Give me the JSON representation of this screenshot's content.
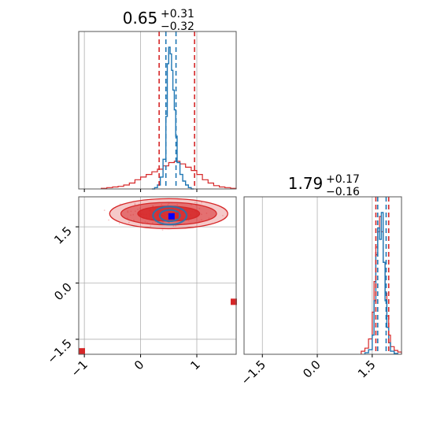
{
  "chart_data": {
    "type": "corner",
    "colors": {
      "primary": "#d62728",
      "secondary": "#1f77b4",
      "marker": "#0000ff"
    },
    "panels": [
      {
        "id": "hist-x",
        "type": "histogram",
        "title": {
          "value": "0.65",
          "plus": "+0.31",
          "minus": "−0.32"
        },
        "xlim": [
          -1.1,
          1.7
        ],
        "xticks": [
          -1,
          0,
          1
        ],
        "grid": true,
        "blue_hist": {
          "bin_edges": [
            0.2,
            0.25,
            0.3,
            0.35,
            0.4,
            0.45,
            0.475,
            0.5,
            0.525,
            0.55,
            0.575,
            0.6,
            0.625,
            0.65,
            0.7,
            0.75,
            0.8,
            0.85,
            0.9,
            0.95
          ],
          "counts": [
            0,
            2,
            6,
            18,
            45,
            110,
            190,
            215,
            205,
            180,
            150,
            120,
            80,
            40,
            22,
            12,
            6,
            2,
            0
          ]
        },
        "red_hist": {
          "bin_edges": [
            -0.7,
            -0.6,
            -0.5,
            -0.4,
            -0.3,
            -0.2,
            -0.1,
            0.0,
            0.1,
            0.2,
            0.3,
            0.4,
            0.5,
            0.6,
            0.7,
            0.8,
            0.9,
            1.0,
            1.1,
            1.2,
            1.3,
            1.4,
            1.5,
            1.6,
            1.7
          ],
          "counts": [
            1,
            2,
            3,
            4,
            6,
            9,
            14,
            18,
            22,
            26,
            30,
            35,
            40,
            42,
            38,
            33,
            28,
            22,
            14,
            9,
            5,
            3,
            2,
            1
          ]
        },
        "red_lines": [
          0.33,
          0.96
        ],
        "blue_lines": [
          0.45,
          0.63
        ]
      },
      {
        "id": "hist-y",
        "type": "histogram",
        "title": {
          "value": "1.79",
          "plus": "+0.17",
          "minus": "−0.16"
        },
        "xlim": [
          -2.0,
          2.3
        ],
        "xticks": [
          -1.5,
          0.0,
          1.5
        ],
        "grid": true,
        "blue_hist": {
          "bin_edges": [
            1.3,
            1.4,
            1.5,
            1.55,
            1.6,
            1.65,
            1.7,
            1.75,
            1.8,
            1.85,
            1.9,
            1.95,
            2.0,
            2.1,
            2.2
          ],
          "counts": [
            2,
            6,
            25,
            70,
            130,
            165,
            150,
            185,
            120,
            70,
            35,
            15,
            4,
            1
          ]
        },
        "red_hist": {
          "bin_edges": [
            1.2,
            1.3,
            1.4,
            1.5,
            1.55,
            1.6,
            1.65,
            1.7,
            1.75,
            1.8,
            1.85,
            1.9,
            1.95,
            2.0,
            2.1,
            2.2,
            2.3
          ],
          "counts": [
            4,
            8,
            20,
            55,
            95,
            140,
            160,
            180,
            160,
            120,
            80,
            50,
            25,
            10,
            5,
            3
          ]
        },
        "red_lines": [
          1.6,
          1.95
        ],
        "blue_lines": [
          1.65,
          1.88
        ]
      },
      {
        "id": "scatter-2d",
        "type": "contour",
        "xlim": [
          -1.1,
          1.7
        ],
        "ylim": [
          -1.9,
          2.3
        ],
        "xticks": [
          -1,
          0,
          1
        ],
        "yticks": [
          -1.5,
          0.0,
          1.5
        ],
        "grid": true,
        "red_contours": [
          {
            "cx": 0.5,
            "cy": 1.85,
            "rx": 1.05,
            "ry": 0.4
          },
          {
            "cx": 0.5,
            "cy": 1.85,
            "rx": 0.85,
            "ry": 0.3
          },
          {
            "cx": 0.5,
            "cy": 1.85,
            "rx": 0.55,
            "ry": 0.2
          }
        ],
        "blue_contours": [
          {
            "cx": 0.52,
            "cy": 1.8,
            "rx": 0.3,
            "ry": 0.24
          },
          {
            "cx": 0.52,
            "cy": 1.8,
            "rx": 0.18,
            "ry": 0.15
          }
        ],
        "red_marker": [
          0.62,
          1.8
        ],
        "blue_marker": [
          0.55,
          1.78
        ],
        "outlier_markers": [
          [
            -1.05,
            -1.82
          ],
          [
            1.7,
            -0.5
          ]
        ]
      }
    ]
  }
}
